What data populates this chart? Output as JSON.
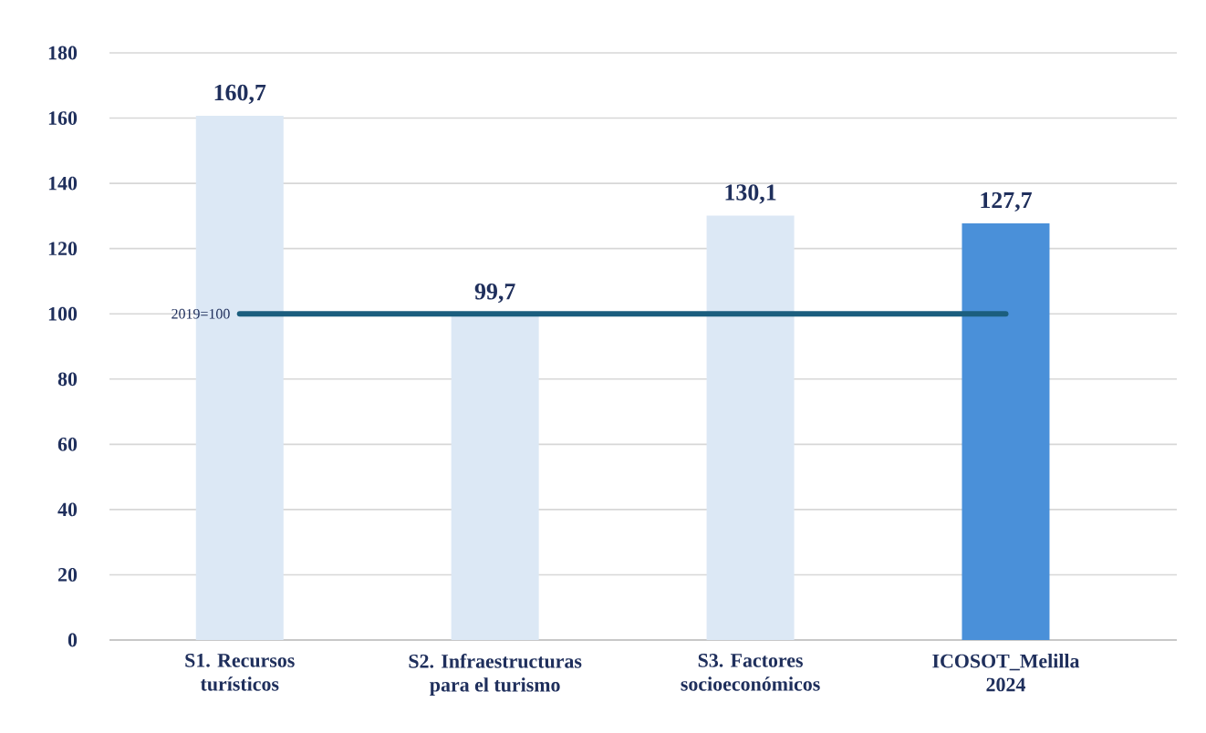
{
  "chart_data": {
    "type": "bar",
    "categories": [
      "S1. Recursos turísticos",
      "S2. Infraestructuras para el turismo",
      "S3. Factores socioeconómicos",
      "ICOSOT_Melilla 2024"
    ],
    "values": [
      160.7,
      99.7,
      130.1,
      127.7
    ],
    "value_labels": [
      "160,7",
      "99,7",
      "130,1",
      "127,7"
    ],
    "colors": [
      "#dce8f5",
      "#dce8f5",
      "#dce8f5",
      "#4a90d9"
    ],
    "ylim": [
      0,
      180
    ],
    "yticks": [
      0,
      20,
      40,
      60,
      80,
      100,
      120,
      140,
      160,
      180
    ],
    "grid": "y",
    "ref_lines": [
      {
        "axis": "y",
        "value": 100,
        "label": "2019=100",
        "color": "#1b5e7e"
      }
    ]
  }
}
